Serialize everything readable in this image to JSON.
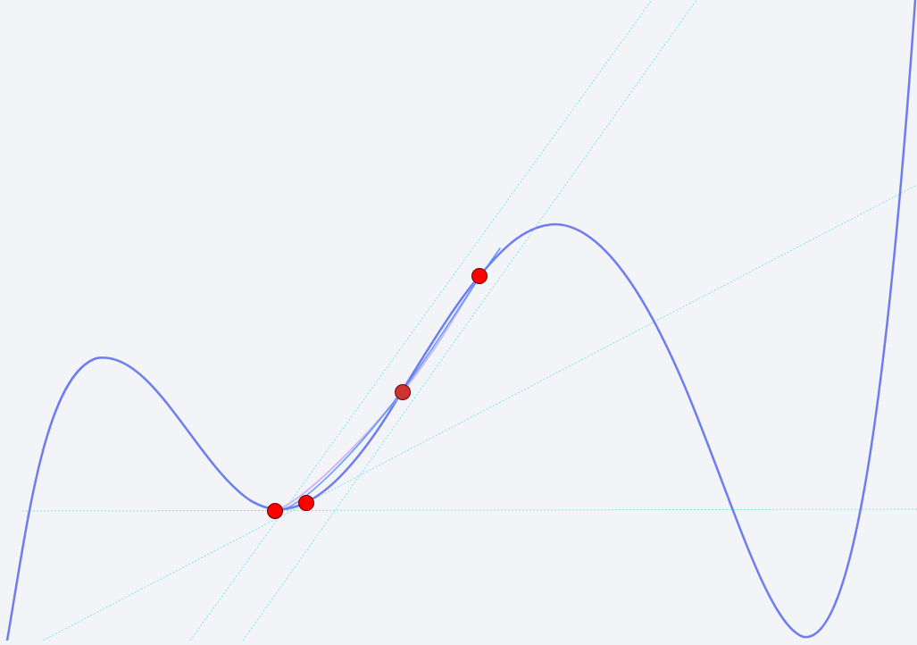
{
  "colors": {
    "background": "#f2f4f7",
    "main_curve": "#6f7cf0",
    "secant_curve": "#c9a8f0",
    "highlight_curve": "#4a90ff",
    "tangent_line": "#7fe6e6",
    "point_fill": "#ff0000",
    "point_fill_dark": "#cc3333"
  },
  "points": [
    {
      "name": "point-a",
      "style": "bright"
    },
    {
      "name": "point-b",
      "style": "bright"
    },
    {
      "name": "point-c",
      "style": "dark"
    },
    {
      "name": "point-d",
      "style": "bright"
    }
  ]
}
